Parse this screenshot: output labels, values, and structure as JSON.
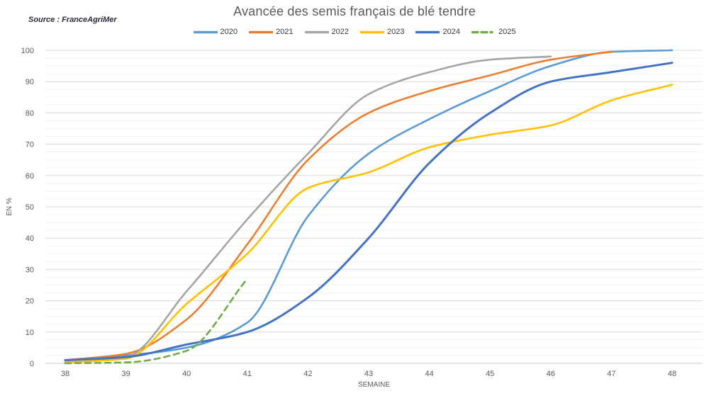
{
  "source": "Source : FranceAgriMer",
  "title": "Avancée des semis français de blé tendre",
  "chart_data": {
    "type": "line",
    "title": "Avancée des semis français de blé tendre",
    "xlabel": "SEMAINE",
    "ylabel": "EN %",
    "x": [
      38,
      39,
      40,
      41,
      42,
      43,
      44,
      45,
      46,
      47,
      48
    ],
    "ylim": [
      0,
      100
    ],
    "y_ticks": [
      0,
      10,
      20,
      30,
      40,
      50,
      60,
      70,
      80,
      90,
      100
    ],
    "y_minor_step": 2.5,
    "grid": "horizontal",
    "legend_position": "top",
    "series": [
      {
        "name": "2020",
        "color": "#5B9BD5",
        "dash": false,
        "values": [
          1,
          2.5,
          5,
          13,
          47,
          67,
          78,
          87,
          95,
          99.5,
          100
        ]
      },
      {
        "name": "2021",
        "color": "#ED7D31",
        "dash": false,
        "values": [
          1,
          3,
          14,
          38,
          65,
          80,
          87,
          92,
          97,
          99.5,
          null
        ]
      },
      {
        "name": "2022",
        "color": "#A5A5A5",
        "dash": false,
        "values": [
          0.5,
          2,
          23,
          46,
          67,
          86,
          93,
          97,
          98,
          null,
          null
        ]
      },
      {
        "name": "2023",
        "color": "#FFC000",
        "dash": false,
        "values": [
          0.3,
          1.5,
          19,
          35,
          56,
          61,
          69,
          73,
          76,
          84,
          89
        ]
      },
      {
        "name": "2024",
        "color": "#4472C4",
        "dash": false,
        "values": [
          1,
          2,
          6,
          10,
          21,
          40,
          64,
          80,
          90,
          93,
          96
        ]
      },
      {
        "name": "2025",
        "color": "#70AD47",
        "dash": true,
        "values": [
          0,
          0.3,
          4,
          27,
          null,
          null,
          null,
          null,
          null,
          null,
          null
        ]
      }
    ],
    "colors": {
      "title_text": "#595959",
      "tick_text": "#595959",
      "major_grid": "#d9d9d9",
      "minor_grid": "#f2f2f2",
      "axis_line": "#c9c9c9"
    }
  }
}
